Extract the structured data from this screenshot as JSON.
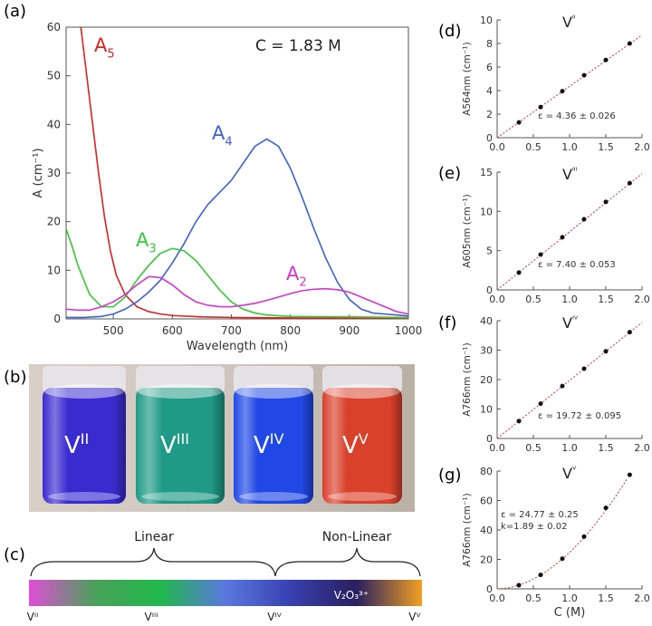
{
  "panels": {
    "a": "(a)",
    "b": "(b)",
    "c": "(c)",
    "d": "(d)",
    "e": "(e)",
    "f": "(f)",
    "g": "(g)"
  },
  "colors": {
    "A5": "#dd2222",
    "A4": "#3b63d6",
    "A3": "#33cc33",
    "A2": "#d633d6",
    "fit": "#e03030",
    "point": "#111111"
  },
  "chart_data": [
    {
      "id": "a",
      "type": "line",
      "annotation": "C = 1.83 M",
      "xlabel": "Wavelength (nm)",
      "ylabel": "A (cm⁻¹)",
      "xlim": [
        420,
        1000
      ],
      "ylim": [
        0,
        60
      ],
      "xticks": [
        500,
        600,
        700,
        800,
        900,
        1000
      ],
      "yticks": [
        0,
        10,
        20,
        30,
        40,
        50,
        60
      ],
      "series": [
        {
          "name": "A5",
          "color": "#dd2222",
          "x": [
            445,
            455,
            465,
            475,
            485,
            495,
            505,
            520,
            540,
            560,
            580,
            600,
            650,
            700,
            800,
            900,
            1000
          ],
          "y": [
            60,
            50,
            40,
            30,
            21,
            14,
            9,
            5,
            2.5,
            1.5,
            1,
            0.7,
            0.4,
            0.3,
            0.2,
            0.15,
            0.1
          ]
        },
        {
          "name": "A4",
          "color": "#3b63d6",
          "x": [
            420,
            450,
            480,
            500,
            520,
            540,
            560,
            580,
            600,
            620,
            640,
            660,
            680,
            700,
            720,
            740,
            760,
            780,
            800,
            820,
            840,
            860,
            880,
            900,
            920,
            940,
            960,
            980,
            1000
          ],
          "y": [
            0.3,
            0.3,
            0.5,
            1,
            2,
            3.5,
            5.5,
            8,
            11.5,
            15.5,
            20,
            23.5,
            26,
            28.5,
            32,
            35.5,
            37,
            35.5,
            31,
            25,
            18.5,
            12.5,
            7.5,
            4,
            2,
            1.2,
            1,
            0.8,
            0.6
          ]
        },
        {
          "name": "A3",
          "color": "#33cc33",
          "x": [
            420,
            430,
            440,
            460,
            480,
            500,
            520,
            540,
            560,
            580,
            600,
            620,
            640,
            660,
            680,
            700,
            720,
            740,
            760,
            800,
            900,
            1000
          ],
          "y": [
            18.5,
            15,
            11,
            5,
            2.5,
            2.5,
            4.5,
            8,
            11,
            13.5,
            14.5,
            14,
            12,
            9,
            6,
            3.5,
            2,
            1.2,
            0.8,
            0.5,
            0.4,
            0.3
          ]
        },
        {
          "name": "A2",
          "color": "#d633d6",
          "x": [
            420,
            440,
            460,
            480,
            500,
            520,
            540,
            560,
            580,
            600,
            620,
            640,
            660,
            680,
            700,
            720,
            740,
            760,
            780,
            800,
            820,
            840,
            860,
            880,
            900,
            920,
            940,
            960,
            980,
            1000
          ],
          "y": [
            2,
            1.8,
            1.8,
            2.5,
            3.5,
            5,
            7,
            8.7,
            8.5,
            7,
            5,
            3.5,
            2.8,
            2.5,
            2.5,
            2.8,
            3.2,
            3.8,
            4.5,
            5.2,
            5.8,
            6.1,
            6.2,
            6,
            5.5,
            4.5,
            3.5,
            2.5,
            1.5,
            1
          ]
        }
      ]
    },
    {
      "id": "d",
      "type": "scatter",
      "title": "Vᴵᴵ",
      "ylabel": "A564nm (cm⁻¹)",
      "xlabel": "",
      "xlim": [
        0,
        2
      ],
      "ylim": [
        0,
        10
      ],
      "xticks": [
        "0.0",
        "0.5",
        "1.0",
        "1.5",
        "2.0"
      ],
      "yticks": [
        0,
        2,
        4,
        6,
        8,
        10
      ],
      "fit": "linear",
      "fit_line": {
        "x": [
          0,
          2.0
        ],
        "y": [
          0,
          8.72
        ]
      },
      "annotation": "ε = 4.36 ± 0.026",
      "x": [
        0.3,
        0.6,
        0.9,
        1.2,
        1.5,
        1.83
      ],
      "y": [
        1.3,
        2.6,
        3.95,
        5.3,
        6.6,
        8.0
      ]
    },
    {
      "id": "e",
      "type": "scatter",
      "title": "Vᴵᴵᴵ",
      "ylabel": "A605nm (cm⁻¹)",
      "xlabel": "",
      "xlim": [
        0,
        2
      ],
      "ylim": [
        0,
        15
      ],
      "xticks": [
        "0.0",
        "0.5",
        "1.0",
        "1.5",
        "2.0"
      ],
      "yticks": [
        0,
        5,
        10,
        15
      ],
      "fit": "linear",
      "fit_line": {
        "x": [
          0,
          2.0
        ],
        "y": [
          0,
          14.8
        ]
      },
      "annotation": "ε = 7.40 ± 0.053",
      "x": [
        0.3,
        0.6,
        0.9,
        1.2,
        1.5,
        1.83
      ],
      "y": [
        2.2,
        4.5,
        6.7,
        9.0,
        11.2,
        13.6
      ]
    },
    {
      "id": "f",
      "type": "scatter",
      "title": "Vᴵⱽ",
      "ylabel": "A766nm (cm⁻¹)",
      "xlabel": "",
      "xlim": [
        0,
        2
      ],
      "ylim": [
        0,
        40
      ],
      "xticks": [
        "0.0",
        "0.5",
        "1.0",
        "1.5",
        "2.0"
      ],
      "yticks": [
        0,
        10,
        20,
        30,
        40
      ],
      "fit": "linear",
      "fit_line": {
        "x": [
          0,
          2.0
        ],
        "y": [
          0,
          39.44
        ]
      },
      "annotation": "ε = 19.72 ± 0.095",
      "x": [
        0.3,
        0.6,
        0.9,
        1.2,
        1.5,
        1.83
      ],
      "y": [
        5.9,
        11.8,
        17.8,
        23.7,
        29.6,
        36.1
      ]
    },
    {
      "id": "g",
      "type": "scatter",
      "title": "Vⱽ",
      "ylabel": "A766nm (cm⁻¹)",
      "xlabel": "C (M)",
      "xlim": [
        0,
        2
      ],
      "ylim": [
        0,
        80
      ],
      "xticks": [
        "0.0",
        "0.5",
        "1.0",
        "1.5",
        "2.0"
      ],
      "yticks": [
        0,
        20,
        40,
        60,
        80
      ],
      "fit": "power",
      "fit_params": {
        "eps": 24.77,
        "k": 1.89
      },
      "annotation": "ε = 24.77 ± 0.25",
      "annotation2": "k=1.89 ± 0.02",
      "x": [
        0.3,
        0.6,
        0.9,
        1.2,
        1.5,
        1.83
      ],
      "y": [
        2.5,
        9.5,
        20.5,
        35.5,
        55.0,
        77.5
      ]
    }
  ],
  "photo": {
    "vials": [
      {
        "label": "V",
        "sup": "II",
        "color": "#3a2bd0"
      },
      {
        "label": "V",
        "sup": "III",
        "color": "#1e9a86"
      },
      {
        "label": "V",
        "sup": "IV",
        "color": "#1f48e6"
      },
      {
        "label": "V",
        "sup": "V",
        "color": "#d9412b"
      }
    ]
  },
  "gradient_bar": {
    "linear_label": "Linear",
    "nonlinear_label": "Non-Linear",
    "mid_label": "V₂O₃³⁺",
    "stops": [
      "#e04ed6",
      "#4aa05a",
      "#20b84a",
      "#5a78e0",
      "#3840b0",
      "#2a2060",
      "#f0a020"
    ],
    "ticks": [
      {
        "label": "Vᴵᴵ"
      },
      {
        "label": "Vᴵᴵᴵ"
      },
      {
        "label": "Vᴵⱽ"
      },
      {
        "label": "Vⱽ"
      }
    ]
  }
}
